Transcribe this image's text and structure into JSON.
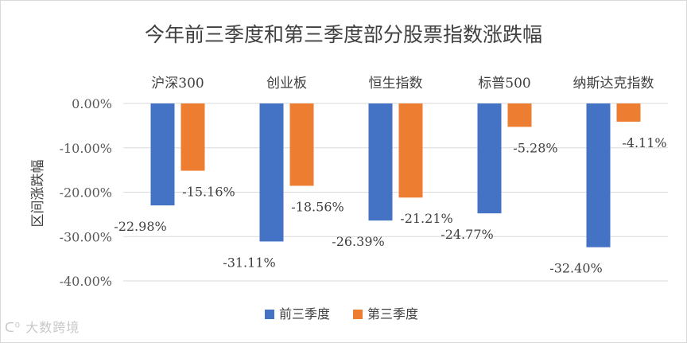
{
  "chart_data": {
    "type": "bar",
    "title": "今年前三季度和第三季度部分股票指数涨跌幅",
    "xlabel": "",
    "ylabel": "区间涨跌幅",
    "categories": [
      "沪深300",
      "创业板",
      "恒生指数",
      "标普500",
      "纳斯达克指数"
    ],
    "series": [
      {
        "name": "前三季度",
        "color": "#4472c4",
        "values": [
          -22.98,
          -31.11,
          -26.39,
          -24.77,
          -32.4
        ],
        "labels": [
          "-22.98%",
          "-31.11%",
          "-26.39%",
          "-24.77%",
          "-32.40%"
        ]
      },
      {
        "name": "第三季度",
        "color": "#ed7d31",
        "values": [
          -15.16,
          -18.56,
          -21.21,
          -5.28,
          -4.11
        ],
        "labels": [
          "-15.16%",
          "-18.56%",
          "-21.21%",
          "-5.28%",
          "-4.11%"
        ]
      }
    ],
    "ylim": [
      -40,
      0
    ],
    "yticks": [
      0,
      -10,
      -20,
      -30,
      -40
    ],
    "ytick_labels": [
      "0.00%",
      "-10.00%",
      "-20.00%",
      "-30.00%",
      "-40.00%"
    ],
    "grid": true,
    "legend": "bottom"
  },
  "watermark": "大数跨境"
}
